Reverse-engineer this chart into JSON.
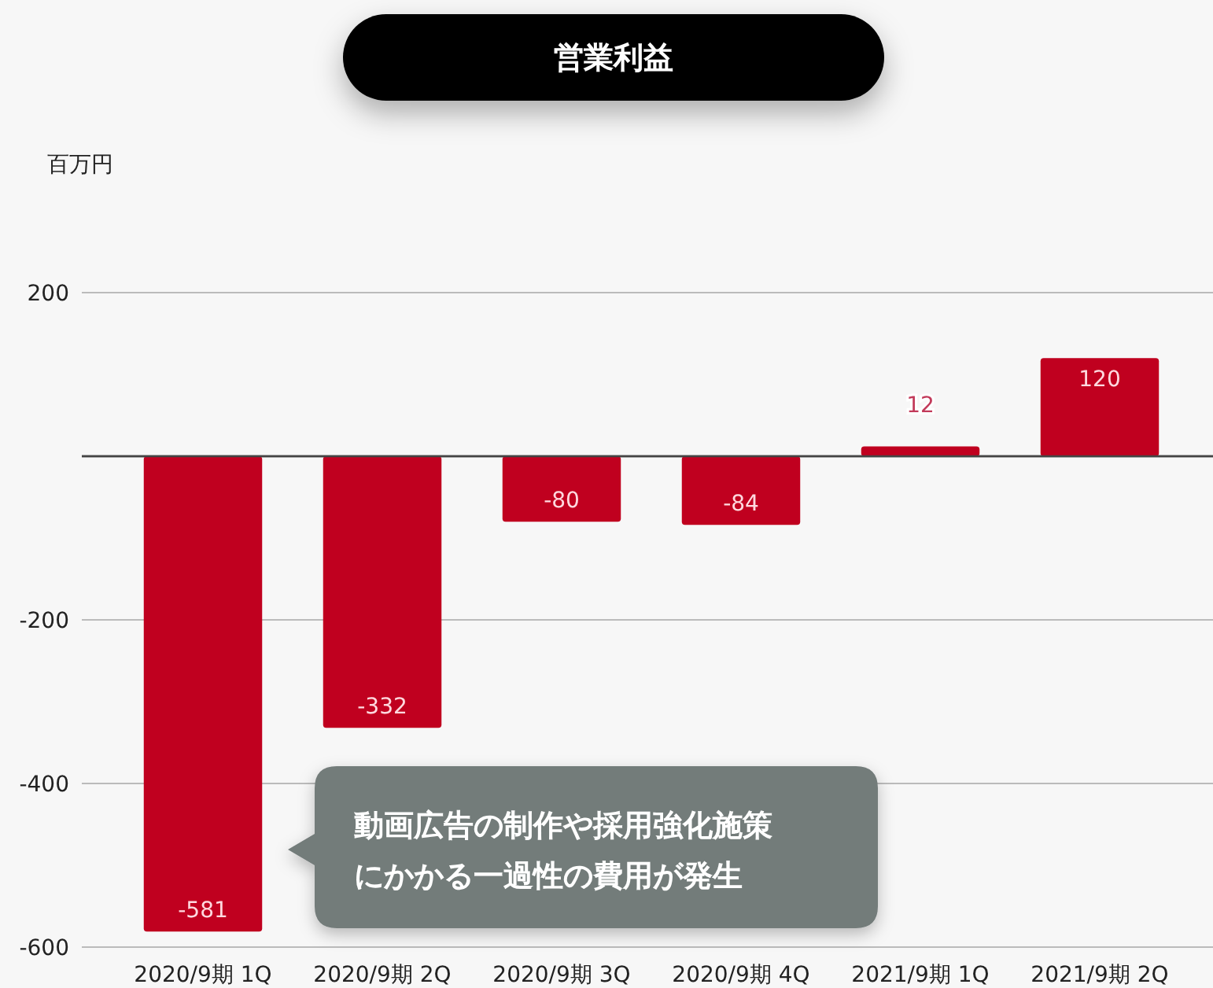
{
  "chart_data": {
    "type": "bar",
    "title": "営業利益",
    "ylabel": "百万円",
    "categories": [
      "2020/9期 1Q",
      "2020/9期 2Q",
      "2020/9期 3Q",
      "2020/9期 4Q",
      "2021/9期 1Q",
      "2021/9期 2Q"
    ],
    "values": [
      -581,
      -332,
      -80,
      -84,
      12,
      120
    ],
    "color": "#c0001f",
    "ylim": [
      -600,
      200
    ],
    "yticks": [
      {
        "value": -600,
        "label": "-600"
      },
      {
        "value": -400,
        "label": "-400"
      },
      {
        "value": -200,
        "label": "-200"
      },
      {
        "value": 0,
        "label": null
      },
      200
    ],
    "grid": "y",
    "data_labels": true,
    "annotations": [
      "動画広告の制作や採用強化施策にかかる一過性の費用が発生"
    ]
  }
}
